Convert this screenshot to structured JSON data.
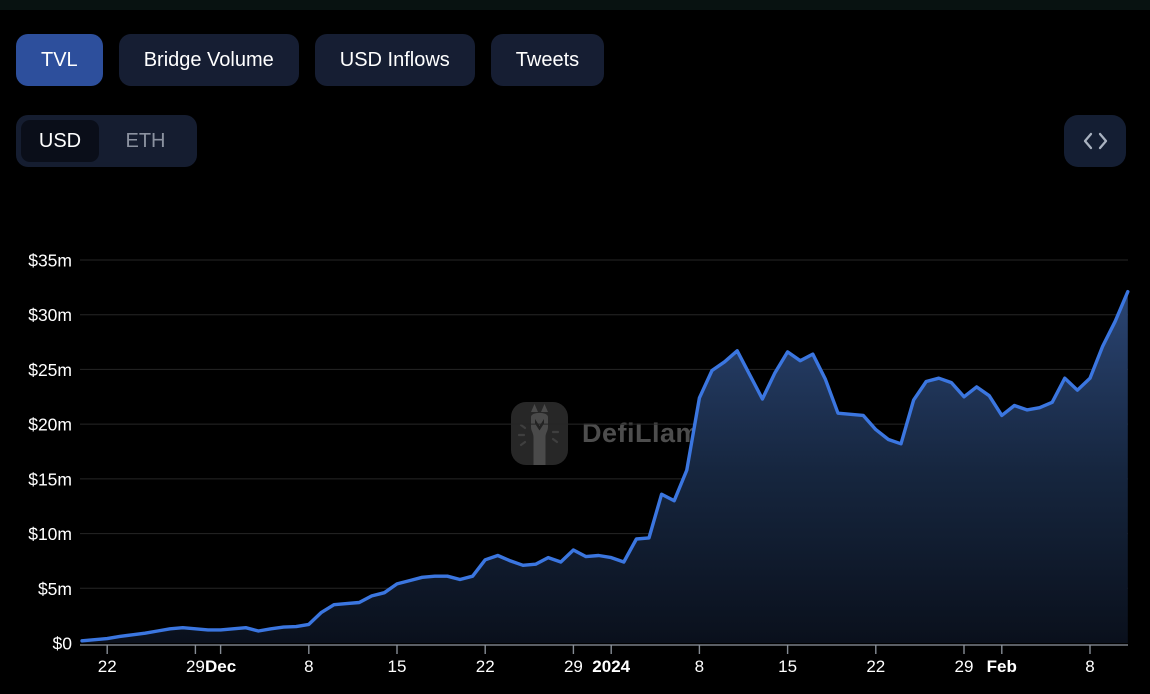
{
  "colors": {
    "background": "#000000",
    "top_strip": "#081211",
    "tab_active_bg": "#2d4f9c",
    "tab_bg": "#161e33",
    "toggle_bg": "#151d30",
    "toggle_selected_bg": "#0a0e19",
    "toggle_unselected_text": "#8b92a0",
    "embed_bg": "#141e33",
    "embed_icon": "#a9b2c0",
    "line": "#3b76e0",
    "area_top": "#2e4a7c",
    "area_mid": "#16263f",
    "area_bottom": "#0a101c",
    "grid": "#262626",
    "axis": "#8e949d",
    "tick_text": "#ffffff",
    "watermark_text": "#4d4d4d",
    "watermark_box": "#272727",
    "watermark_llama": "#4a4a4a"
  },
  "tabs": [
    {
      "label": "TVL",
      "active": true
    },
    {
      "label": "Bridge Volume",
      "active": false
    },
    {
      "label": "USD Inflows",
      "active": false
    },
    {
      "label": "Tweets",
      "active": false
    }
  ],
  "currency_toggle": {
    "options": [
      "USD",
      "ETH"
    ],
    "selected": "USD"
  },
  "embed_button": {
    "icon": "code-embed-icon"
  },
  "watermark": {
    "text": "DefiLlama"
  },
  "chart_data": {
    "type": "area",
    "title": "TVL",
    "currency": "USD",
    "unit": "USD millions",
    "interval": "daily",
    "start_date": "2023-11-20",
    "end_date": "2024-02-11",
    "ylim": [
      0,
      35
    ],
    "grid": "horizontal",
    "legend": false,
    "y_ticks": [
      {
        "label": "$0",
        "value": 0
      },
      {
        "label": "$5m",
        "value": 5
      },
      {
        "label": "$10m",
        "value": 10
      },
      {
        "label": "$15m",
        "value": 15
      },
      {
        "label": "$20m",
        "value": 20
      },
      {
        "label": "$25m",
        "value": 25
      },
      {
        "label": "$30m",
        "value": 30
      },
      {
        "label": "$35m",
        "value": 35
      }
    ],
    "x_ticks": [
      {
        "label": "22",
        "day": 2,
        "bold": false
      },
      {
        "label": "29",
        "day": 9,
        "bold": false
      },
      {
        "label": "Dec",
        "day": 11,
        "bold": true
      },
      {
        "label": "8",
        "day": 18,
        "bold": false
      },
      {
        "label": "15",
        "day": 25,
        "bold": false
      },
      {
        "label": "22",
        "day": 32,
        "bold": false
      },
      {
        "label": "29",
        "day": 39,
        "bold": false
      },
      {
        "label": "2024",
        "day": 42,
        "bold": true
      },
      {
        "label": "8",
        "day": 49,
        "bold": false
      },
      {
        "label": "15",
        "day": 56,
        "bold": false
      },
      {
        "label": "22",
        "day": 63,
        "bold": false
      },
      {
        "label": "29",
        "day": 70,
        "bold": false
      },
      {
        "label": "Feb",
        "day": 73,
        "bold": true
      },
      {
        "label": "8",
        "day": 80,
        "bold": false
      }
    ],
    "values_musd": [
      0.2,
      0.3,
      0.4,
      0.6,
      0.75,
      0.9,
      1.1,
      1.3,
      1.4,
      1.3,
      1.2,
      1.2,
      1.3,
      1.4,
      1.1,
      1.3,
      1.45,
      1.5,
      1.7,
      2.8,
      3.5,
      3.6,
      3.7,
      4.3,
      4.6,
      5.4,
      5.7,
      6.0,
      6.1,
      6.1,
      5.8,
      6.1,
      7.6,
      8.0,
      7.5,
      7.1,
      7.2,
      7.8,
      7.4,
      8.5,
      7.9,
      8.0,
      7.8,
      7.4,
      9.5,
      9.6,
      13.6,
      13.0,
      15.8,
      22.4,
      24.9,
      25.7,
      26.7,
      24.5,
      22.3,
      24.7,
      26.6,
      25.8,
      26.4,
      24.1,
      21.0,
      20.9,
      20.8,
      19.5,
      18.6,
      18.2,
      22.2,
      23.9,
      24.2,
      23.8,
      22.5,
      23.4,
      22.6,
      20.8,
      21.7,
      21.3,
      21.5,
      22.0,
      24.2,
      23.1,
      24.2,
      27.1,
      29.4,
      32.1
    ]
  }
}
